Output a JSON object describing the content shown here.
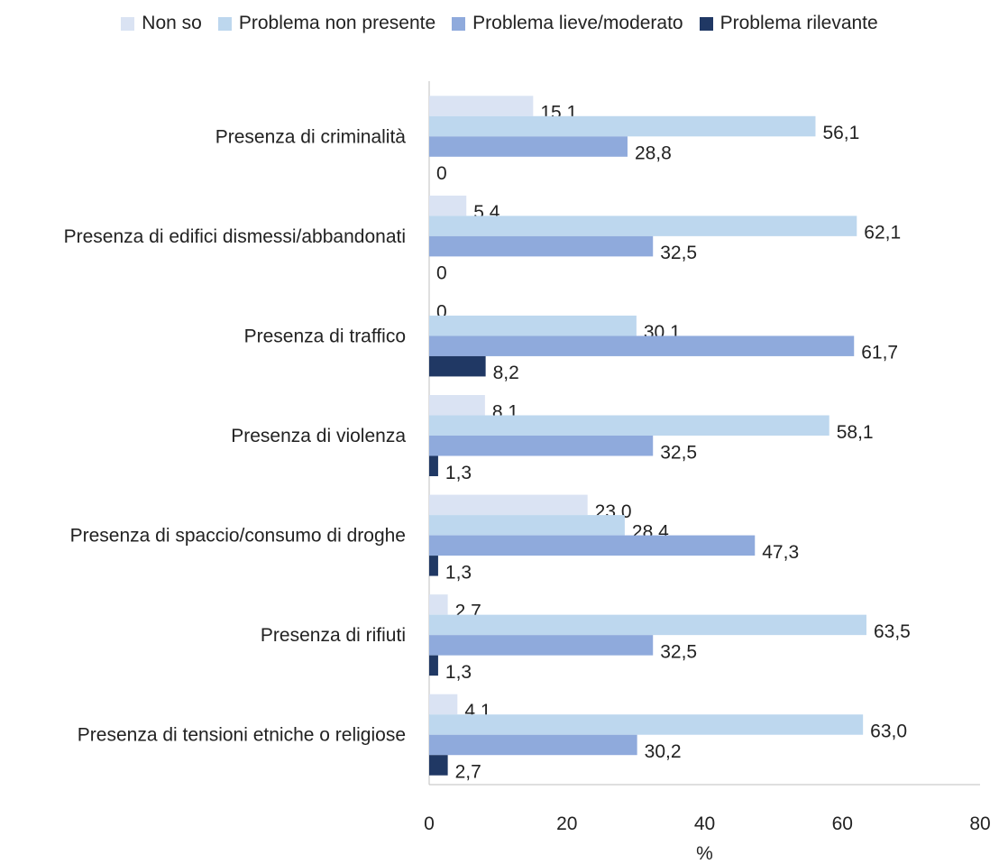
{
  "chart_data": {
    "type": "bar",
    "orientation": "horizontal",
    "categories": [
      "Presenza di criminalità",
      "Presenza di edifici dismessi/abbandonati",
      "Presenza di traffico",
      "Presenza di violenza",
      "Presenza di spaccio/consumo di droghe",
      "Presenza di rifiuti",
      "Presenza di tensioni etniche o religiose"
    ],
    "series": [
      {
        "name": "Non so",
        "color": "#dae3f3",
        "values": [
          15.1,
          5.4,
          0,
          8.1,
          23.0,
          2.7,
          4.1
        ],
        "labels": [
          "15,1",
          "5,4",
          "0",
          "8,1",
          "23,0",
          "2,7",
          "4,1"
        ]
      },
      {
        "name": "Problema non presente",
        "color": "#bdd7ee",
        "values": [
          56.1,
          62.1,
          30.1,
          58.1,
          28.4,
          63.5,
          63.0
        ],
        "labels": [
          "56,1",
          "62,1",
          "30,1",
          "58,1",
          "28,4",
          "63,5",
          "63,0"
        ]
      },
      {
        "name": "Problema lieve/moderato",
        "color": "#8faadc",
        "values": [
          28.8,
          32.5,
          61.7,
          32.5,
          47.3,
          32.5,
          30.2
        ],
        "labels": [
          "28,8",
          "32,5",
          "61,7",
          "32,5",
          "47,3",
          "32,5",
          "30,2"
        ]
      },
      {
        "name": "Problema rilevante",
        "color": "#203864",
        "values": [
          0,
          0,
          8.2,
          1.3,
          1.3,
          1.3,
          2.7
        ],
        "labels": [
          "0",
          "0",
          "8,2",
          "1,3",
          "1,3",
          "1,3",
          "2,7"
        ]
      }
    ],
    "xlabel": "%",
    "ylabel": "",
    "xlim": [
      0,
      80
    ],
    "xticks": [
      0,
      20,
      40,
      60,
      80
    ],
    "grid": false,
    "legend_position": "top"
  }
}
